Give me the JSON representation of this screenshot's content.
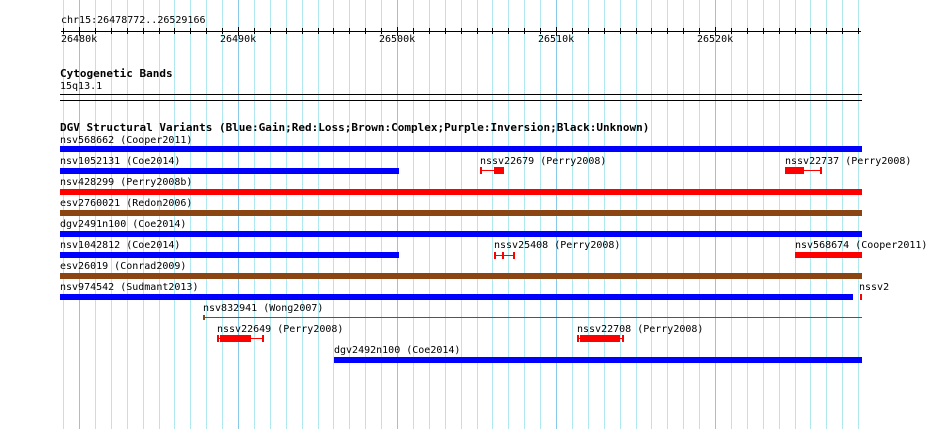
{
  "ruler": {
    "region": "chr15:26478772..26529166",
    "ticks": [
      "26480k",
      "26490k",
      "26500k",
      "26510k",
      "26520k"
    ]
  },
  "cyto": {
    "title": "Cytogenetic Bands",
    "band": "15q13.1"
  },
  "dgv": {
    "title": "DGV Structural Variants (Blue:Gain;Red:Loss;Brown:Complex;Purple:Inversion;Black:Unknown)",
    "features": [
      "nsv568662 (Cooper2011)",
      "nsv1052131 (Coe2014)",
      "nssv22679 (Perry2008)",
      "nssv22737 (Perry2008)",
      "nsv428299 (Perry2008b)",
      "esv2760021 (Redon2006)",
      "dgv2491n100 (Coe2014)",
      "nsv1042812 (Coe2014)",
      "nssv25408 (Perry2008)",
      "nsv568674 (Cooper2011)",
      "esv26019 (Conrad2009)",
      "nsv974542 (Sudmant2013)",
      "nssv2",
      "nsv832941 (Wong2007)",
      "nssv22649 (Perry2008)",
      "nssv22708 (Perry2008)",
      "dgv2492n100 (Coe2014)"
    ]
  },
  "colors": {
    "gain": "#0000ff",
    "loss": "#ff0000",
    "complex": "#8b4513",
    "grid_minor": "#b0e8f0",
    "grid_major": "#88c8e8"
  }
}
